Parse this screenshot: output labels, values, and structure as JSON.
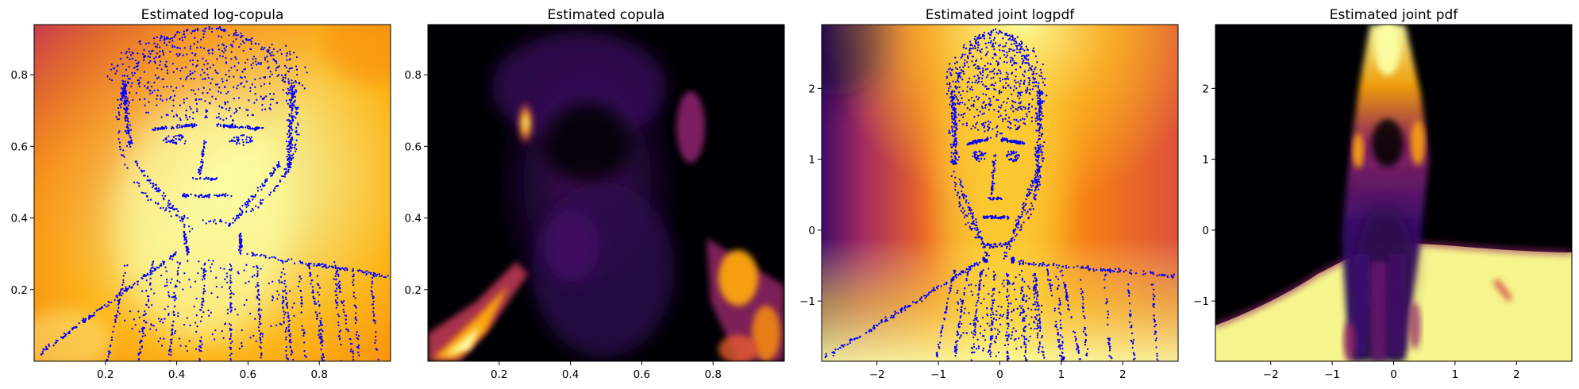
{
  "colors": {
    "scatter": "#0000ff",
    "colormap": "inferno",
    "colormap_dark": "#000004",
    "colormap_purple": "#420a68",
    "colormap_red": "#932667",
    "colormap_orange": "#dd513a",
    "colormap_amber": "#fca50a",
    "colormap_light": "#fcffa4"
  },
  "chart_data": [
    {
      "type": "heatmap",
      "title": "Estimated log-copula",
      "xlabel": "",
      "ylabel": "",
      "xlim": [
        0.0,
        1.0
      ],
      "ylim": [
        0.0,
        0.94
      ],
      "xticks": [
        0.2,
        0.4,
        0.6,
        0.8
      ],
      "yticks": [
        0.2,
        0.4,
        0.6,
        0.8
      ],
      "xtick_labels": [
        "0.2",
        "0.4",
        "0.6",
        "0.8"
      ],
      "ytick_labels": [
        "0.2",
        "0.4",
        "0.6",
        "0.8"
      ],
      "colormap": "inferno",
      "grid": false,
      "overlay": "scatter of samples tracing a portrait of a man",
      "scatter_color": "#0000ff"
    },
    {
      "type": "heatmap",
      "title": "Estimated copula",
      "xlabel": "",
      "ylabel": "",
      "xlim": [
        0.0,
        1.0
      ],
      "ylim": [
        0.0,
        0.94
      ],
      "xticks": [
        0.2,
        0.4,
        0.6,
        0.8
      ],
      "yticks": [
        0.2,
        0.4,
        0.6,
        0.8
      ],
      "xtick_labels": [
        "0.2",
        "0.4",
        "0.6",
        "0.8"
      ],
      "ytick_labels": [
        "0.2",
        "0.4",
        "0.6",
        "0.8"
      ],
      "colormap": "inferno",
      "grid": false
    },
    {
      "type": "heatmap",
      "title": "Estimated joint logpdf",
      "xlabel": "",
      "ylabel": "",
      "xlim": [
        -2.9,
        2.9
      ],
      "ylim": [
        -1.85,
        2.9
      ],
      "xticks": [
        -2,
        -1,
        0,
        1,
        2
      ],
      "yticks": [
        -1,
        0,
        1,
        2
      ],
      "xtick_labels": [
        "−2",
        "−1",
        "0",
        "1",
        "2"
      ],
      "ytick_labels": [
        "−1",
        "0",
        "1",
        "2"
      ],
      "colormap": "inferno",
      "grid": false,
      "overlay": "scatter of samples tracing a portrait of a man",
      "scatter_color": "#0000ff"
    },
    {
      "type": "heatmap",
      "title": "Estimated joint pdf",
      "xlabel": "",
      "ylabel": "",
      "xlim": [
        -2.9,
        2.9
      ],
      "ylim": [
        -1.85,
        2.9
      ],
      "xticks": [
        -2,
        -1,
        0,
        1,
        2
      ],
      "yticks": [
        -1,
        0,
        1,
        2
      ],
      "xtick_labels": [
        "−2",
        "−1",
        "0",
        "1",
        "2"
      ],
      "ytick_labels": [
        "−1",
        "0",
        "1",
        "2"
      ],
      "colormap": "inferno",
      "grid": false
    }
  ]
}
